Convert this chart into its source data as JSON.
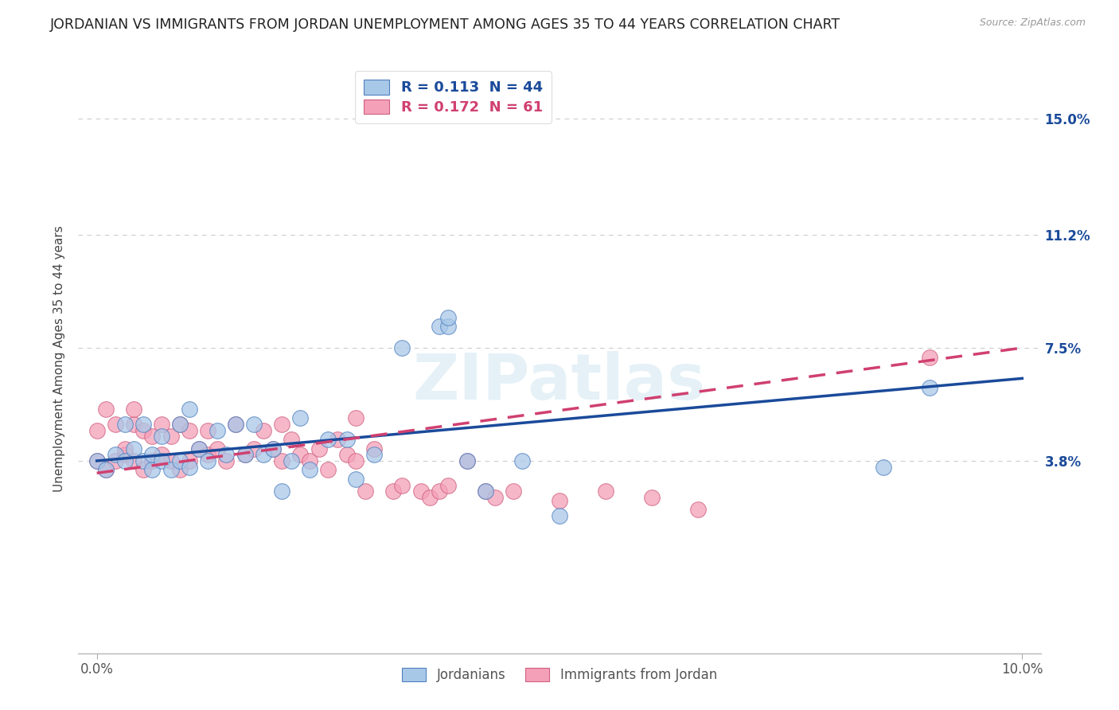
{
  "title": "JORDANIAN VS IMMIGRANTS FROM JORDAN UNEMPLOYMENT AMONG AGES 35 TO 44 YEARS CORRELATION CHART",
  "source": "Source: ZipAtlas.com",
  "ylabel": "Unemployment Among Ages 35 to 44 years",
  "xticklabels": [
    "0.0%",
    "10.0%"
  ],
  "yticklabels": [
    "3.8%",
    "7.5%",
    "11.2%",
    "15.0%"
  ],
  "ytick_values": [
    0.038,
    0.075,
    0.112,
    0.15
  ],
  "xlim": [
    -0.002,
    0.102
  ],
  "ylim": [
    -0.025,
    0.168
  ],
  "r_blue": 0.113,
  "n_blue": 44,
  "r_pink": 0.172,
  "n_pink": 61,
  "legend_label_blue": "Jordanians",
  "legend_label_pink": "Immigrants from Jordan",
  "blue_color": "#a8c8e8",
  "pink_color": "#f4a0b8",
  "blue_edge_color": "#5080c0",
  "pink_edge_color": "#d06080",
  "blue_line_color": "#1a4a9a",
  "pink_line_color": "#d04070",
  "title_fontsize": 12.5,
  "axis_label_fontsize": 11,
  "tick_fontsize": 12,
  "watermark": "ZIPatlas",
  "blue_scatter_x": [
    0.0,
    0.001,
    0.002,
    0.003,
    0.003,
    0.004,
    0.005,
    0.005,
    0.006,
    0.006,
    0.007,
    0.007,
    0.008,
    0.009,
    0.009,
    0.01,
    0.01,
    0.011,
    0.012,
    0.013,
    0.014,
    0.015,
    0.016,
    0.017,
    0.018,
    0.019,
    0.02,
    0.021,
    0.022,
    0.023,
    0.025,
    0.027,
    0.028,
    0.03,
    0.033,
    0.037,
    0.038,
    0.038,
    0.04,
    0.042,
    0.046,
    0.05,
    0.085,
    0.09
  ],
  "blue_scatter_y": [
    0.038,
    0.035,
    0.04,
    0.038,
    0.05,
    0.042,
    0.038,
    0.05,
    0.035,
    0.04,
    0.038,
    0.046,
    0.035,
    0.038,
    0.05,
    0.036,
    0.055,
    0.042,
    0.038,
    0.048,
    0.04,
    0.05,
    0.04,
    0.05,
    0.04,
    0.042,
    0.028,
    0.038,
    0.052,
    0.035,
    0.045,
    0.045,
    0.032,
    0.04,
    0.075,
    0.082,
    0.082,
    0.085,
    0.038,
    0.028,
    0.038,
    0.02,
    0.036,
    0.062
  ],
  "pink_scatter_x": [
    0.0,
    0.0,
    0.001,
    0.001,
    0.002,
    0.002,
    0.003,
    0.003,
    0.004,
    0.004,
    0.004,
    0.005,
    0.005,
    0.006,
    0.006,
    0.007,
    0.007,
    0.008,
    0.008,
    0.009,
    0.009,
    0.01,
    0.01,
    0.011,
    0.012,
    0.012,
    0.013,
    0.014,
    0.015,
    0.016,
    0.017,
    0.018,
    0.019,
    0.02,
    0.02,
    0.021,
    0.022,
    0.023,
    0.024,
    0.025,
    0.026,
    0.027,
    0.028,
    0.028,
    0.029,
    0.03,
    0.032,
    0.033,
    0.035,
    0.036,
    0.037,
    0.038,
    0.04,
    0.042,
    0.043,
    0.045,
    0.05,
    0.055,
    0.06,
    0.065,
    0.09
  ],
  "pink_scatter_y": [
    0.038,
    0.048,
    0.035,
    0.055,
    0.038,
    0.05,
    0.04,
    0.042,
    0.038,
    0.05,
    0.055,
    0.035,
    0.048,
    0.038,
    0.046,
    0.04,
    0.05,
    0.038,
    0.046,
    0.035,
    0.05,
    0.038,
    0.048,
    0.042,
    0.04,
    0.048,
    0.042,
    0.038,
    0.05,
    0.04,
    0.042,
    0.048,
    0.042,
    0.038,
    0.05,
    0.045,
    0.04,
    0.038,
    0.042,
    0.035,
    0.045,
    0.04,
    0.038,
    0.052,
    0.028,
    0.042,
    0.028,
    0.03,
    0.028,
    0.026,
    0.028,
    0.03,
    0.038,
    0.028,
    0.026,
    0.028,
    0.025,
    0.028,
    0.026,
    0.022,
    0.072
  ],
  "blue_line_x": [
    0.0,
    0.1
  ],
  "blue_line_y": [
    0.038,
    0.065
  ],
  "pink_line_x": [
    0.0,
    0.1
  ],
  "pink_line_y": [
    0.034,
    0.075
  ],
  "grid_color": "#cccccc",
  "background_color": "#ffffff"
}
